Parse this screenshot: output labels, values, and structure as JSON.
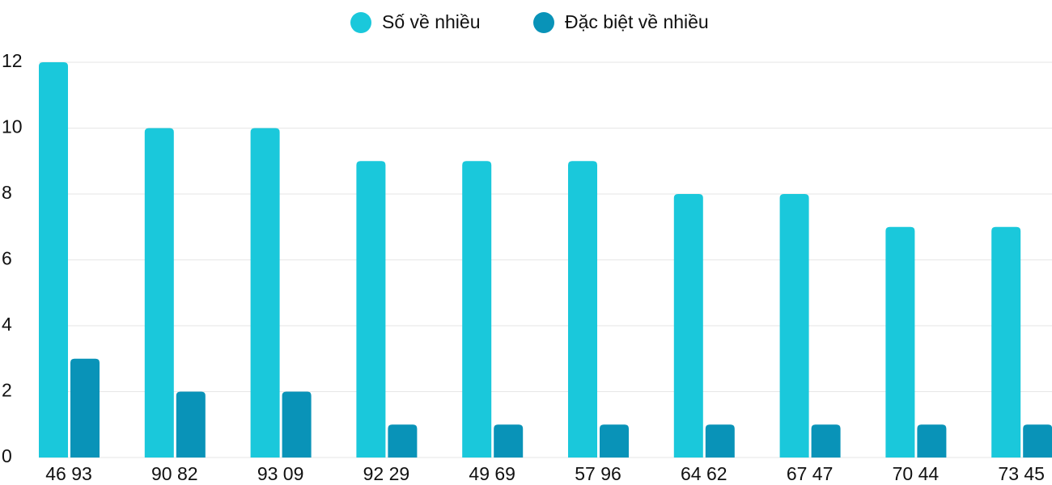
{
  "chart_data": {
    "type": "bar",
    "categories": [
      "46 93",
      "90 82",
      "93 09",
      "92 29",
      "49 69",
      "57 96",
      "64 62",
      "67 47",
      "70 44",
      "73 45"
    ],
    "series": [
      {
        "name": "Số về nhiều",
        "color": "#1ac8db",
        "values": [
          12,
          10,
          10,
          9,
          9,
          9,
          8,
          8,
          7,
          7
        ]
      },
      {
        "name": "Đặc biệt về nhiều",
        "color": "#0993b8",
        "values": [
          3,
          2,
          2,
          1,
          1,
          1,
          1,
          1,
          1,
          1
        ]
      }
    ],
    "ylim": [
      0,
      12
    ],
    "yticks": [
      0,
      2,
      4,
      6,
      8,
      10,
      12
    ],
    "grid": true
  }
}
